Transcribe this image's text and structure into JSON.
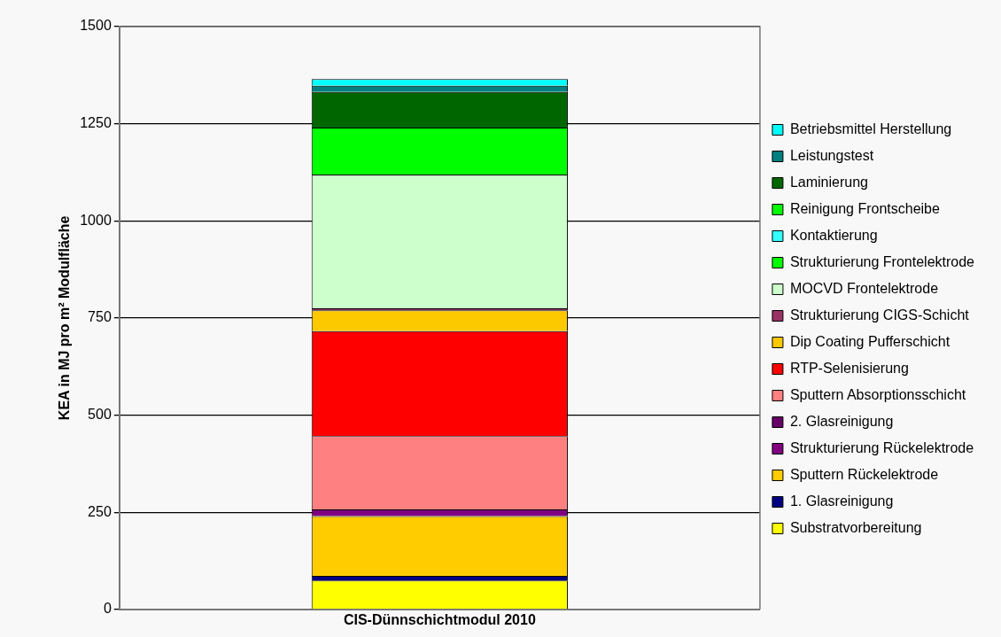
{
  "chart_data": {
    "type": "bar",
    "stacked": true,
    "categories": [
      "CIS-Dünnschichtmodul 2010"
    ],
    "ylabel": "KEA in MJ pro m² Modulfläche",
    "ylim": [
      0,
      1500
    ],
    "yticks": [
      0,
      250,
      500,
      750,
      1000,
      1250,
      1500
    ],
    "grid": "y",
    "legend": "right",
    "series": [
      {
        "name": "Substratvorbereitung",
        "color": "#ffff00",
        "values": [
          74
        ]
      },
      {
        "name": "1. Glasreinigung",
        "color": "#000080",
        "values": [
          12
        ]
      },
      {
        "name": "Sputtern Rückelektrode",
        "color": "#ffcc00",
        "values": [
          154
        ]
      },
      {
        "name": "Strukturierung Rückelektrode",
        "color": "#800080",
        "values": [
          17
        ]
      },
      {
        "name": "2. Glasreinigung",
        "color": "#660066",
        "values": [
          null
        ]
      },
      {
        "name": "Sputtern Absorptionsschicht",
        "color": "#ff8080",
        "values": [
          189
        ]
      },
      {
        "name": "RTP-Selenisierung",
        "color": "#ff0000",
        "values": [
          270
        ]
      },
      {
        "name": "Dip Coating Pufferschicht",
        "color": "#fcc800",
        "values": [
          54
        ]
      },
      {
        "name": "Strukturierung CIGS-Schicht",
        "color": "#993366",
        "values": [
          5
        ]
      },
      {
        "name": "MOCVD Frontelektrode",
        "color": "#ccffcc",
        "values": [
          344
        ]
      },
      {
        "name": "Strukturierung Frontelektrode",
        "color": "#00ff00",
        "values": [
          null
        ]
      },
      {
        "name": "Kontaktierung",
        "color": "#33ffff",
        "values": [
          null
        ]
      },
      {
        "name": "Reinigung Frontscheibe",
        "color": "#00fe00",
        "values": [
          121
        ]
      },
      {
        "name": "Laminierung",
        "color": "#006600",
        "values": [
          92
        ]
      },
      {
        "name": "Leistungstest",
        "color": "#008080",
        "values": [
          16
        ]
      },
      {
        "name": "Betriebsmittel Herstellung",
        "color": "#00ffff",
        "values": [
          17
        ]
      }
    ]
  }
}
